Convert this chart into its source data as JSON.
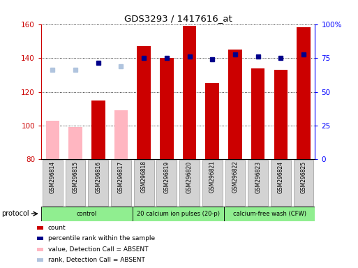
{
  "title": "GDS3293 / 1417616_at",
  "samples": [
    "GSM296814",
    "GSM296815",
    "GSM296816",
    "GSM296817",
    "GSM296818",
    "GSM296819",
    "GSM296820",
    "GSM296821",
    "GSM296822",
    "GSM296823",
    "GSM296824",
    "GSM296825"
  ],
  "counts": [
    103,
    99,
    115,
    109,
    147,
    140,
    159,
    125,
    145,
    134,
    133,
    158
  ],
  "absent_flags": [
    true,
    true,
    false,
    true,
    false,
    false,
    false,
    false,
    false,
    false,
    false,
    false
  ],
  "percentile_ranks": [
    null,
    null,
    137,
    null,
    140,
    140,
    141,
    139,
    142,
    141,
    140,
    142
  ],
  "absent_ranks": [
    133,
    133,
    null,
    135,
    null,
    null,
    null,
    null,
    null,
    null,
    null,
    null
  ],
  "ylim_left": [
    80,
    160
  ],
  "ylim_right": [
    0,
    100
  ],
  "yticks_left": [
    80,
    100,
    120,
    140,
    160
  ],
  "yticks_right": [
    0,
    25,
    50,
    75,
    100
  ],
  "bar_color_present": "#CC0000",
  "bar_color_absent": "#FFB6C1",
  "dot_color_present": "#00008B",
  "dot_color_absent": "#B0C4DE",
  "right_ytick_labels": [
    "0",
    "25",
    "50",
    "75",
    "100%"
  ],
  "protocol_spans": [
    {
      "label": "control",
      "start": 0,
      "end": 3
    },
    {
      "label": "20 calcium ion pulses (20-p)",
      "start": 4,
      "end": 7
    },
    {
      "label": "calcium-free wash (CFW)",
      "start": 8,
      "end": 11
    }
  ],
  "legend_items": [
    {
      "label": "count",
      "color": "#CC0000"
    },
    {
      "label": "percentile rank within the sample",
      "color": "#00008B"
    },
    {
      "label": "value, Detection Call = ABSENT",
      "color": "#FFB6C1"
    },
    {
      "label": "rank, Detection Call = ABSENT",
      "color": "#B0C4DE"
    }
  ]
}
